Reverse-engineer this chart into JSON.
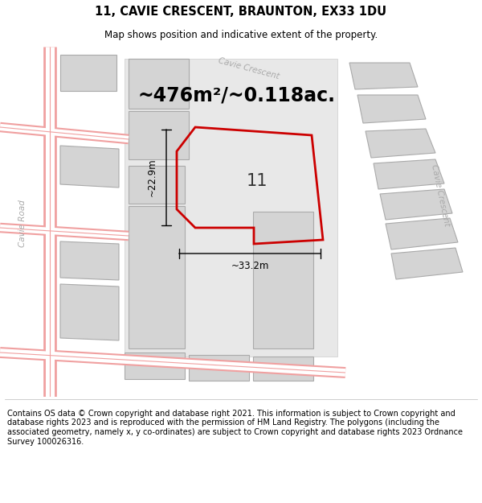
{
  "title": "11, CAVIE CRESCENT, BRAUNTON, EX33 1DU",
  "subtitle": "Map shows position and indicative extent of the property.",
  "area_text": "~476m²/~0.118ac.",
  "label_number": "11",
  "dim_width": "~33.2m",
  "dim_height": "~22.9m",
  "footer": "Contains OS data © Crown copyright and database right 2021. This information is subject to Crown copyright and database rights 2023 and is reproduced with the permission of HM Land Registry. The polygons (including the associated geometry, namely x, y co-ordinates) are subject to Crown copyright and database rights 2023 Ordnance Survey 100026316.",
  "bg_color": "#ffffff",
  "road_color": "#f0a0a0",
  "road_fill": "#ffffff",
  "building_color": "#d4d4d4",
  "building_edge": "#aaaaaa",
  "plot_color": "#cc0000",
  "label_color": "#333333",
  "road_label_color": "#aaaaaa",
  "title_fontsize": 10.5,
  "subtitle_fontsize": 8.5,
  "area_fontsize": 17,
  "label_fontsize": 15,
  "footer_fontsize": 7,
  "dim_fontsize": 8.5
}
